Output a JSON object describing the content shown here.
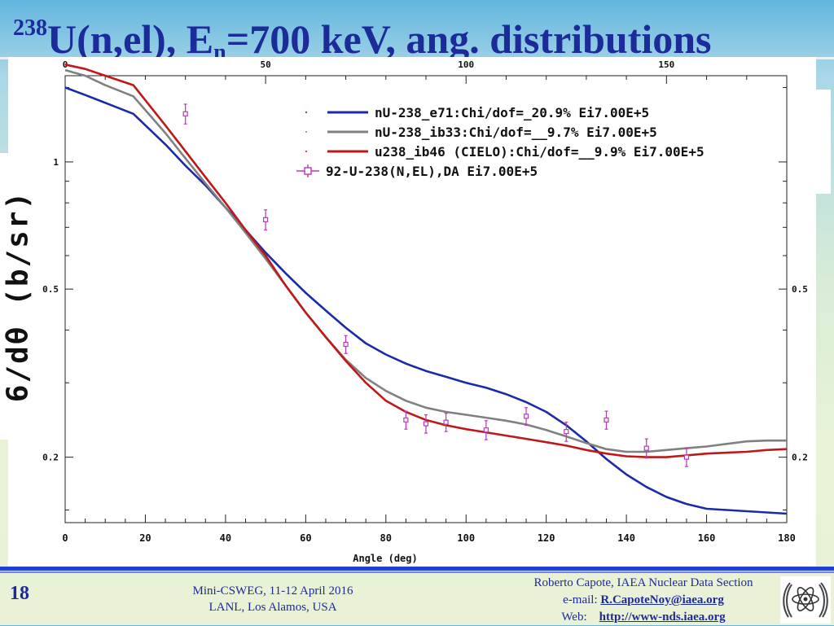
{
  "slide": {
    "title_sup": "238",
    "title_main": "U(n,el), E",
    "title_sub": "n",
    "title_rest": "=700 keV, ang. distributions",
    "slide_number": "18",
    "conference_line1": "Mini-CSWEG, 11-12 April 2016",
    "conference_line2": "LANL, Los Alamos, USA",
    "author_line": "Roberto Capote, IAEA Nuclear Data Section",
    "email_label": "e-mail:",
    "email": "R.CapoteNoy@iaea.org",
    "web_label": "Web:",
    "web": "http://www-nds.iaea.org",
    "logo_icon": "iaea-emblem-icon"
  },
  "chart_data": {
    "type": "line",
    "xlabel": "Angle (deg)",
    "ylabel": "6/dθ (b/sr)",
    "xlim": [
      0,
      180
    ],
    "ylim": [
      0.14,
      1.6
    ],
    "yscale": "log",
    "top_axis_ticks": [
      "0",
      "50",
      "100",
      "150"
    ],
    "x_ticks": [
      "0",
      "20",
      "40",
      "60",
      "80",
      "100",
      "120",
      "140",
      "160",
      "180"
    ],
    "y_tick_labels": [
      {
        "value": 0.2,
        "label": "0.2"
      },
      {
        "value": 0.5,
        "label": "0.5"
      },
      {
        "value": 1,
        "label": "1"
      }
    ],
    "right_tick_labels": [
      {
        "value": 0.2,
        "label": "0.2"
      },
      {
        "value": 0.5,
        "label": "0.5"
      }
    ],
    "grid": false,
    "legend_position": "top-right",
    "series": [
      {
        "name": "nU-238_e71:Chi/dof=_20.9% Ei7.00E+5",
        "color": "#1a2aa8",
        "x": [
          0,
          5,
          10,
          17,
          25,
          30,
          35,
          40,
          45,
          50,
          55,
          60,
          65,
          70,
          75,
          80,
          85,
          90,
          95,
          100,
          105,
          110,
          115,
          120,
          125,
          130,
          135,
          140,
          145,
          150,
          155,
          160,
          165,
          170,
          175,
          180
        ],
        "y": [
          1.5,
          1.44,
          1.38,
          1.3,
          1.1,
          0.98,
          0.88,
          0.78,
          0.69,
          0.61,
          0.545,
          0.49,
          0.445,
          0.405,
          0.372,
          0.35,
          0.333,
          0.32,
          0.31,
          0.3,
          0.292,
          0.282,
          0.27,
          0.256,
          0.238,
          0.218,
          0.198,
          0.182,
          0.17,
          0.161,
          0.155,
          0.151,
          0.15,
          0.149,
          0.148,
          0.147
        ]
      },
      {
        "name": "nU-238_ib33:Chi/dof=__9.7% Ei7.00E+5",
        "color": "#808080",
        "x": [
          0,
          5,
          10,
          17,
          25,
          30,
          35,
          40,
          45,
          50,
          55,
          60,
          65,
          70,
          75,
          80,
          85,
          90,
          95,
          100,
          105,
          110,
          115,
          120,
          125,
          130,
          135,
          140,
          145,
          150,
          155,
          160,
          165,
          170,
          175,
          180
        ],
        "y": [
          1.65,
          1.6,
          1.52,
          1.43,
          1.17,
          1.02,
          0.89,
          0.78,
          0.68,
          0.59,
          0.51,
          0.44,
          0.385,
          0.34,
          0.308,
          0.287,
          0.272,
          0.262,
          0.256,
          0.252,
          0.248,
          0.244,
          0.239,
          0.232,
          0.224,
          0.216,
          0.209,
          0.206,
          0.206,
          0.208,
          0.21,
          0.212,
          0.215,
          0.218,
          0.219,
          0.219
        ]
      },
      {
        "name": "u238_ib46 (CIELO):Chi/dof=__9.9% Ei7.00E+5",
        "color": "#c01818",
        "x": [
          0,
          5,
          10,
          17,
          25,
          30,
          35,
          40,
          45,
          50,
          55,
          60,
          65,
          70,
          75,
          80,
          85,
          90,
          95,
          100,
          105,
          110,
          115,
          120,
          125,
          130,
          135,
          140,
          145,
          150,
          155,
          160,
          165,
          170,
          175,
          180
        ],
        "y": [
          1.7,
          1.66,
          1.6,
          1.52,
          1.22,
          1.06,
          0.92,
          0.8,
          0.69,
          0.6,
          0.51,
          0.44,
          0.385,
          0.338,
          0.3,
          0.272,
          0.256,
          0.245,
          0.238,
          0.233,
          0.229,
          0.225,
          0.221,
          0.217,
          0.213,
          0.208,
          0.204,
          0.201,
          0.2,
          0.2,
          0.202,
          0.204,
          0.205,
          0.206,
          0.208,
          0.209
        ]
      },
      {
        "name": "92-U-238(N,EL),DA Ei7.00E+5",
        "color": "#b838b8",
        "marker": "square",
        "x": [
          30,
          50,
          70,
          85,
          90,
          95,
          105,
          115,
          125,
          135,
          145,
          155
        ],
        "y": [
          1.3,
          0.73,
          0.37,
          0.245,
          0.24,
          0.242,
          0.232,
          0.25,
          0.23,
          0.245,
          0.21,
          0.2
        ],
        "err": [
          0.07,
          0.04,
          0.018,
          0.012,
          0.012,
          0.012,
          0.012,
          0.012,
          0.012,
          0.012,
          0.011,
          0.01
        ]
      }
    ]
  }
}
